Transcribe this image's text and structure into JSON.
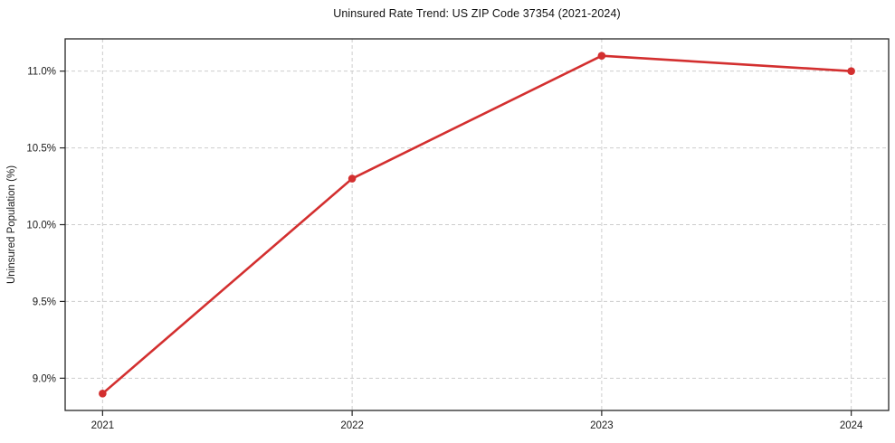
{
  "figure": {
    "background": "#ffffff"
  },
  "chart_data": {
    "type": "line",
    "title": "Uninsured Rate Trend: US ZIP Code 37354 (2021-2024)",
    "xlabel": "",
    "ylabel": "Uninsured Population (%)",
    "x": [
      2021,
      2022,
      2023,
      2024
    ],
    "xtick_labels": [
      "2021",
      "2022",
      "2023",
      "2024"
    ],
    "yticks": [
      9.0,
      9.5,
      10.0,
      10.5,
      11.0
    ],
    "ytick_labels": [
      "9.0%",
      "9.5%",
      "10.0%",
      "10.5%",
      "11.0%"
    ],
    "series": [
      {
        "name": "Uninsured rate",
        "values": [
          8.9,
          10.3,
          11.1,
          11.0
        ],
        "color": "#d32f2f",
        "marker": "circle"
      }
    ],
    "xlim": [
      2020.85,
      2024.15
    ],
    "ylim": [
      8.79,
      11.21
    ],
    "grid": true,
    "grid_style": "dashed",
    "grid_color": "#cdcdcd",
    "frame_color": "#262626",
    "tick_text_color": "#1a1a1a",
    "legend": "none",
    "plot_background": "#ffffff"
  }
}
